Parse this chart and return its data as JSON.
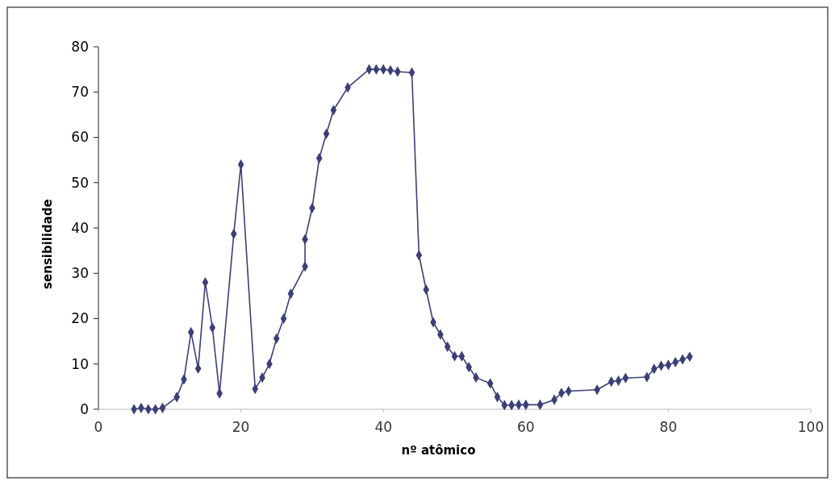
{
  "chart_data": {
    "type": "line",
    "xlabel": "nº atômico",
    "ylabel": "sensibilidade",
    "xlim": [
      0,
      100
    ],
    "xticks": [
      0,
      20,
      40,
      60,
      80,
      100
    ],
    "ylim": [
      0,
      80
    ],
    "yticks": [
      0,
      10,
      20,
      30,
      40,
      50,
      60,
      70,
      80
    ],
    "grid": false,
    "marker": "diamond",
    "line_style": "solid",
    "series": [
      {
        "color": "#3b3f78",
        "x": [
          5,
          6,
          7,
          8,
          9,
          11,
          12,
          13,
          14,
          15,
          16,
          17,
          19,
          20,
          22,
          23,
          24,
          25,
          26,
          27,
          29,
          29,
          30,
          31,
          32,
          33,
          35,
          38,
          39,
          40,
          41,
          42,
          44,
          45,
          46,
          47,
          48,
          49,
          50,
          51,
          52,
          53,
          55,
          56,
          57,
          58,
          59,
          60,
          62,
          64,
          65,
          66,
          70,
          72,
          73,
          74,
          77,
          78,
          79,
          80,
          81,
          82,
          83
        ],
        "values": [
          0,
          0.3,
          0,
          0,
          0.3,
          2.7,
          6.6,
          17,
          9,
          28,
          18,
          3.5,
          38.7,
          54,
          4.5,
          7,
          10,
          15.6,
          20,
          25.5,
          31.5,
          37.5,
          44.4,
          55.4,
          60.8,
          66,
          71,
          75,
          75,
          75,
          74.8,
          74.5,
          74.3,
          34,
          26.4,
          19.2,
          16.5,
          13.8,
          11.7,
          11.7,
          9.3,
          7,
          5.7,
          2.7,
          0.9,
          0.9,
          1,
          1,
          1,
          2.1,
          3.6,
          4,
          4.3,
          6.1,
          6.3,
          6.9,
          7.1,
          8.9,
          9.6,
          9.8,
          10.4,
          11,
          11.6
        ]
      }
    ]
  }
}
